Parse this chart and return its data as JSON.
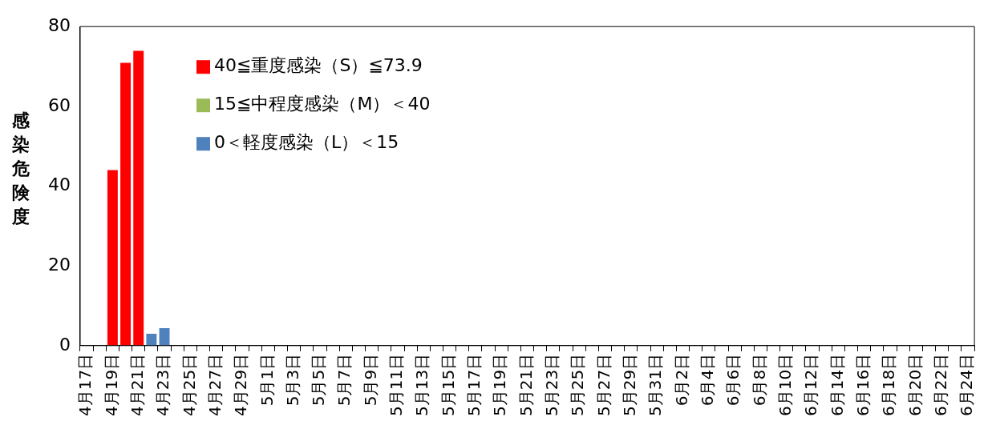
{
  "chart_data": {
    "type": "bar",
    "ylabel": "感染危険度",
    "categories": [
      "4月17日",
      null,
      "4月19日",
      null,
      "4月21日",
      null,
      "4月23日",
      null,
      "4月25日",
      null,
      "4月27日",
      null,
      "4月29日",
      null,
      "5月1日",
      null,
      "5月3日",
      null,
      "5月5日",
      null,
      "5月7日",
      null,
      "5月9日",
      null,
      "5月11日",
      null,
      "5月13日",
      null,
      "5月15日",
      null,
      "5月17日",
      null,
      "5月19日",
      null,
      "5月21日",
      null,
      "5月23日",
      null,
      "5月25日",
      null,
      "5月27日",
      null,
      "5月29日",
      null,
      "5月31日",
      null,
      "6月2日",
      null,
      "6月4日",
      null,
      "6月6日",
      null,
      "6月8日",
      null,
      "6月10日",
      null,
      "6月12日",
      null,
      "6月14日",
      null,
      "6月16日",
      null,
      "6月18日",
      null,
      "6月20日",
      null,
      "6月22日",
      null,
      "6月24日"
    ],
    "series": [
      {
        "name": "40≦重度感染（S）≦73.9",
        "color": "#ff0000",
        "values": [
          null,
          null,
          44,
          70.9,
          73.9,
          null,
          null,
          null,
          null,
          null,
          null,
          null,
          null,
          null,
          null,
          null,
          null,
          null,
          null,
          null,
          null,
          null,
          null,
          null,
          null,
          null,
          null,
          null,
          null,
          null,
          null,
          null,
          null,
          null,
          null,
          null,
          null,
          null,
          null,
          null,
          null,
          null,
          null,
          null,
          null,
          null,
          null,
          null,
          null,
          null,
          null,
          null,
          null,
          null,
          null,
          null,
          null,
          null,
          null,
          null,
          null,
          null,
          null,
          null,
          null,
          null,
          null,
          null,
          null
        ]
      },
      {
        "name": "15≦中程度感染（M）＜40",
        "color": "#9bbb59",
        "values": [
          null,
          null,
          null,
          null,
          null,
          null,
          null,
          null,
          null,
          null,
          null,
          null,
          null,
          null,
          null,
          null,
          null,
          null,
          null,
          null,
          null,
          null,
          null,
          null,
          null,
          null,
          null,
          null,
          null,
          null,
          null,
          null,
          null,
          null,
          null,
          null,
          null,
          null,
          null,
          null,
          null,
          null,
          null,
          null,
          null,
          null,
          null,
          null,
          null,
          null,
          null,
          null,
          null,
          null,
          null,
          null,
          null,
          null,
          null,
          null,
          null,
          null,
          null,
          null,
          null,
          null,
          null,
          null,
          null
        ]
      },
      {
        "name": "0＜軽度感染（L）＜15",
        "color": "#4f81bd",
        "values": [
          null,
          null,
          null,
          null,
          null,
          3,
          4.4,
          null,
          null,
          null,
          null,
          null,
          null,
          null,
          null,
          null,
          null,
          null,
          null,
          null,
          null,
          null,
          null,
          null,
          null,
          null,
          null,
          null,
          null,
          null,
          null,
          null,
          null,
          null,
          null,
          null,
          null,
          null,
          null,
          null,
          null,
          null,
          null,
          null,
          null,
          null,
          null,
          null,
          null,
          null,
          null,
          null,
          null,
          null,
          null,
          null,
          null,
          null,
          null,
          null,
          null,
          null,
          null,
          null,
          null,
          null,
          null,
          null,
          null
        ]
      }
    ],
    "stacked": true,
    "ylim": [
      0,
      80
    ],
    "yticks": [
      0,
      20,
      40,
      60,
      80
    ],
    "grid": false,
    "legend": "top left"
  }
}
